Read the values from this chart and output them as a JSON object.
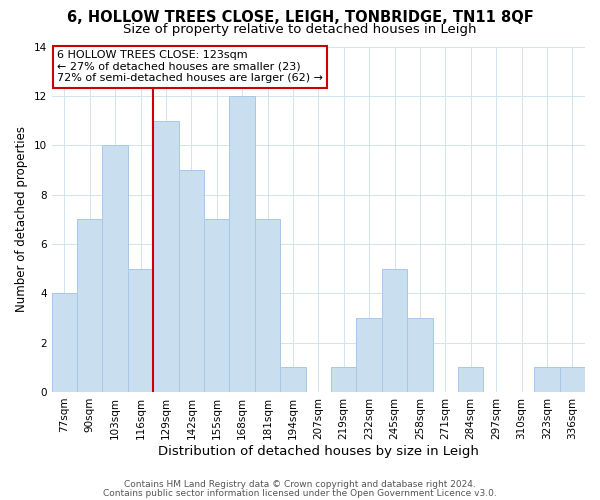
{
  "title": "6, HOLLOW TREES CLOSE, LEIGH, TONBRIDGE, TN11 8QF",
  "subtitle": "Size of property relative to detached houses in Leigh",
  "xlabel": "Distribution of detached houses by size in Leigh",
  "ylabel": "Number of detached properties",
  "bar_labels": [
    "77sqm",
    "90sqm",
    "103sqm",
    "116sqm",
    "129sqm",
    "142sqm",
    "155sqm",
    "168sqm",
    "181sqm",
    "194sqm",
    "207sqm",
    "219sqm",
    "232sqm",
    "245sqm",
    "258sqm",
    "271sqm",
    "284sqm",
    "297sqm",
    "310sqm",
    "323sqm",
    "336sqm"
  ],
  "bar_values": [
    4,
    7,
    10,
    5,
    11,
    9,
    7,
    12,
    7,
    1,
    0,
    1,
    3,
    5,
    3,
    0,
    1,
    0,
    0,
    1,
    1
  ],
  "bar_color": "#c9dff0",
  "bar_edge_color": "#a8c8e8",
  "vline_x": 3.5,
  "vline_color": "#cc0000",
  "annotation_title": "6 HOLLOW TREES CLOSE: 123sqm",
  "annotation_line1": "← 27% of detached houses are smaller (23)",
  "annotation_line2": "72% of semi-detached houses are larger (62) →",
  "annotation_box_color": "#ffffff",
  "annotation_box_edge": "#cc0000",
  "ylim": [
    0,
    14
  ],
  "yticks": [
    0,
    2,
    4,
    6,
    8,
    10,
    12,
    14
  ],
  "footer1": "Contains HM Land Registry data © Crown copyright and database right 2024.",
  "footer2": "Contains public sector information licensed under the Open Government Licence v3.0.",
  "title_fontsize": 10.5,
  "subtitle_fontsize": 9.5,
  "xlabel_fontsize": 9.5,
  "ylabel_fontsize": 8.5,
  "tick_fontsize": 7.5,
  "annotation_fontsize": 8,
  "footer_fontsize": 6.5
}
